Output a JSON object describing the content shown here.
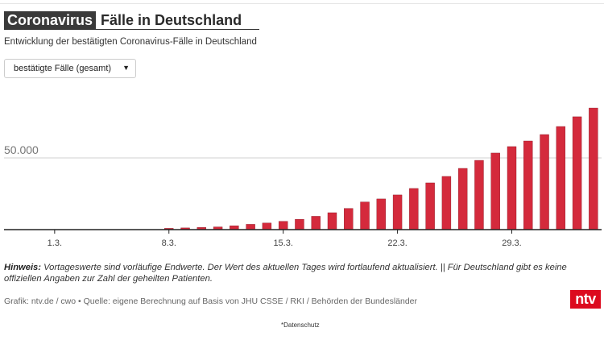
{
  "header": {
    "tag": "Coronavirus",
    "title": "Fälle in Deutschland",
    "subtitle": "Entwicklung der bestätigten Coronavirus-Fälle in Deutschland"
  },
  "dropdown": {
    "selected": "bestätigte Fälle (gesamt)",
    "caret": "▼"
  },
  "chart_data": {
    "type": "bar",
    "title": "Coronavirus Fälle in Deutschland",
    "subtitle": "Entwicklung der bestätigten Coronavirus-Fälle in Deutschland",
    "xlabel": "",
    "ylabel": "",
    "x_tick_labels": [
      "1.3.",
      "8.3.",
      "15.3.",
      "22.3.",
      "29.3."
    ],
    "y_tick_labels": [
      "50.000"
    ],
    "y_ticks": [
      50000
    ],
    "ylim": [
      0,
      100000
    ],
    "xlim_days_from_1_3": [
      -3.1,
      33.5
    ],
    "grid": true,
    "legend": "none",
    "color": "#d42a3c",
    "categories": [
      "8.3.",
      "9.3.",
      "10.3.",
      "11.3.",
      "12.3.",
      "13.3.",
      "14.3.",
      "15.3.",
      "16.3.",
      "17.3.",
      "18.3.",
      "19.3.",
      "20.3.",
      "21.3.",
      "22.3.",
      "23.3.",
      "24.3.",
      "25.3.",
      "26.3.",
      "27.3.",
      "28.3.",
      "29.3.",
      "30.3.",
      "31.3.",
      "1.4.",
      "2.4.",
      "3.4."
    ],
    "day_index_from_1_3": [
      7,
      8,
      9,
      10,
      11,
      12,
      13,
      14,
      15,
      16,
      17,
      18,
      19,
      20,
      21,
      22,
      23,
      24,
      25,
      26,
      27,
      28,
      29,
      30,
      31,
      32,
      33
    ],
    "tick_day_index": [
      0,
      7,
      14,
      21,
      28
    ],
    "values": [
      900,
      1200,
      1500,
      1900,
      2700,
      3700,
      4600,
      5800,
      7200,
      9300,
      11800,
      14800,
      19300,
      21400,
      24200,
      28700,
      32600,
      37100,
      42700,
      48300,
      53400,
      57900,
      61800,
      66300,
      71900,
      78700,
      84800
    ]
  },
  "footer": {
    "note_label": "Hinweis:",
    "note_text": " Vortageswerte sind vorläufige Endwerte. Der Wert des aktuellen Tages wird fortlaufend aktualisiert. || Für Deutschland gibt es keine offiziellen Angaben zur Zahl der geheilten Patienten.",
    "credit": "Grafik: ntv.de / cwo • Quelle: eigene Berechnung auf Basis von JHU CSSE / RKI / Behörden der Bundesländer",
    "logo": "ntv",
    "privacy": "*Datenschutz"
  }
}
